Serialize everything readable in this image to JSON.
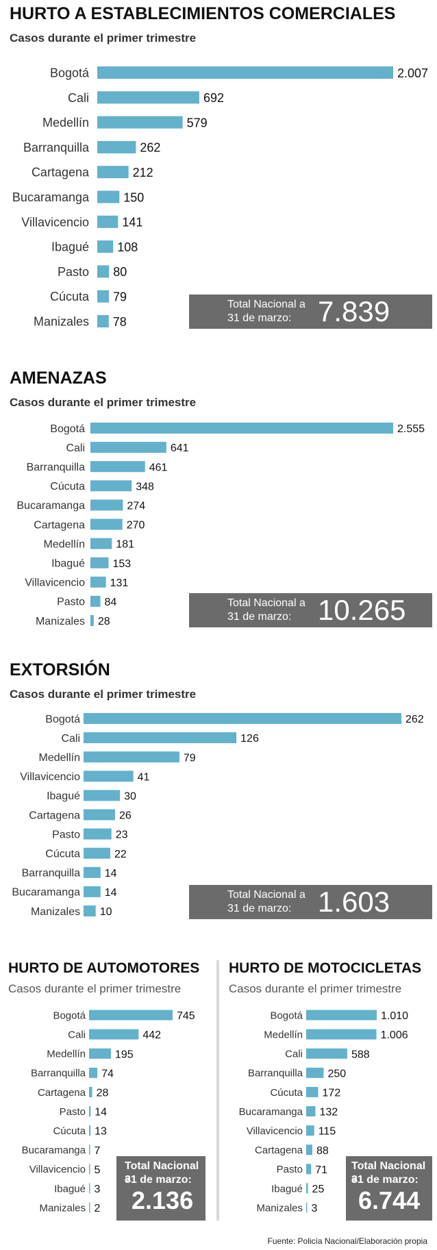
{
  "colors": {
    "bar": "#63b1cb",
    "box": "#6b6b6b"
  },
  "footer": "Fuente: Policía Nacional/Elaboración propia",
  "chart_data": [
    {
      "type": "bar",
      "orientation": "horizontal",
      "title": "HURTO A ESTABLECIMIENTOS COMERCIALES",
      "subtitle": "Casos durante el primer trimestre",
      "categories": [
        "Bogotá",
        "Cali",
        "Medellín",
        "Barranquilla",
        "Cartagena",
        "Bucaramanga",
        "Villavicencio",
        "Ibagué",
        "Pasto",
        "Cúcuta",
        "Manizales"
      ],
      "values": [
        2007,
        692,
        579,
        262,
        212,
        150,
        141,
        108,
        80,
        79,
        78
      ],
      "value_labels": [
        "2.007",
        "692",
        "579",
        "262",
        "212",
        "150",
        "141",
        "108",
        "80",
        "79",
        "78"
      ],
      "total_label_line1": "Total Nacional a",
      "total_label_line2": "31 de marzo:",
      "total_value": "7.839"
    },
    {
      "type": "bar",
      "orientation": "horizontal",
      "title": "AMENAZAS",
      "subtitle": "Casos durante el primer trimestre",
      "categories": [
        "Bogotá",
        "Cali",
        "Barranquilla",
        "Cúcuta",
        "Bucaramanga",
        "Cartagena",
        "Medellín",
        "Ibagué",
        "Villavicencio",
        "Pasto",
        "Manizales"
      ],
      "values": [
        2555,
        641,
        461,
        348,
        274,
        270,
        181,
        153,
        131,
        84,
        28
      ],
      "value_labels": [
        "2.555",
        "641",
        "461",
        "348",
        "274",
        "270",
        "181",
        "153",
        "131",
        "84",
        "28"
      ],
      "total_label_line1": "Total Nacional a",
      "total_label_line2": "31 de marzo:",
      "total_value": "10.265"
    },
    {
      "type": "bar",
      "orientation": "horizontal",
      "title": "EXTORSIÓN",
      "subtitle": "Casos durante el primer trimestre",
      "categories": [
        "Bogotá",
        "Cali",
        "Medellín",
        "Villavicencio",
        "Ibagué",
        "Cartagena",
        "Pasto",
        "Cúcuta",
        "Barranquilla",
        "Bucaramanga",
        "Manizales"
      ],
      "values": [
        262,
        126,
        79,
        41,
        30,
        26,
        23,
        22,
        14,
        14,
        10
      ],
      "value_labels": [
        "262",
        "126",
        "79",
        "41",
        "30",
        "26",
        "23",
        "22",
        "14",
        "14",
        "10"
      ],
      "total_label_line1": "Total Nacional a",
      "total_label_line2": "31 de marzo:",
      "total_value": "1.603"
    },
    {
      "type": "bar",
      "orientation": "horizontal",
      "title": "HURTO DE AUTOMOTORES",
      "subtitle": "Casos durante el primer trimestre",
      "categories": [
        "Bogotá",
        "Cali",
        "Medellín",
        "Barranquilla",
        "Cartagena",
        "Pasto",
        "Cúcuta",
        "Bucaramanga",
        "Villavicencio",
        "Ibagué",
        "Manizales"
      ],
      "values": [
        745,
        442,
        195,
        74,
        28,
        14,
        13,
        7,
        5,
        3,
        2
      ],
      "value_labels": [
        "745",
        "442",
        "195",
        "74",
        "28",
        "14",
        "13",
        "7",
        "5",
        "3",
        "2"
      ],
      "total_label_line1": "Total Nacional a",
      "total_label_line2": "31 de marzo:",
      "total_value": "2.136"
    },
    {
      "type": "bar",
      "orientation": "horizontal",
      "title": "HURTO DE MOTOCICLETAS",
      "subtitle": "Casos durante el primer trimestre",
      "categories": [
        "Bogotá",
        "Medellín",
        "Cali",
        "Barranquilla",
        "Cúcuta",
        "Bucaramanga",
        "Villavicencio",
        "Cartagena",
        "Pasto",
        "Ibagué",
        "Manizales"
      ],
      "values": [
        1010,
        1006,
        588,
        250,
        172,
        132,
        115,
        88,
        71,
        25,
        3
      ],
      "value_labels": [
        "1.010",
        "1.006",
        "588",
        "250",
        "172",
        "132",
        "115",
        "88",
        "71",
        "25",
        "3"
      ],
      "total_label_line1": "Total Nacional a",
      "total_label_line2": "31 de marzo:",
      "total_value": "6.744"
    }
  ]
}
